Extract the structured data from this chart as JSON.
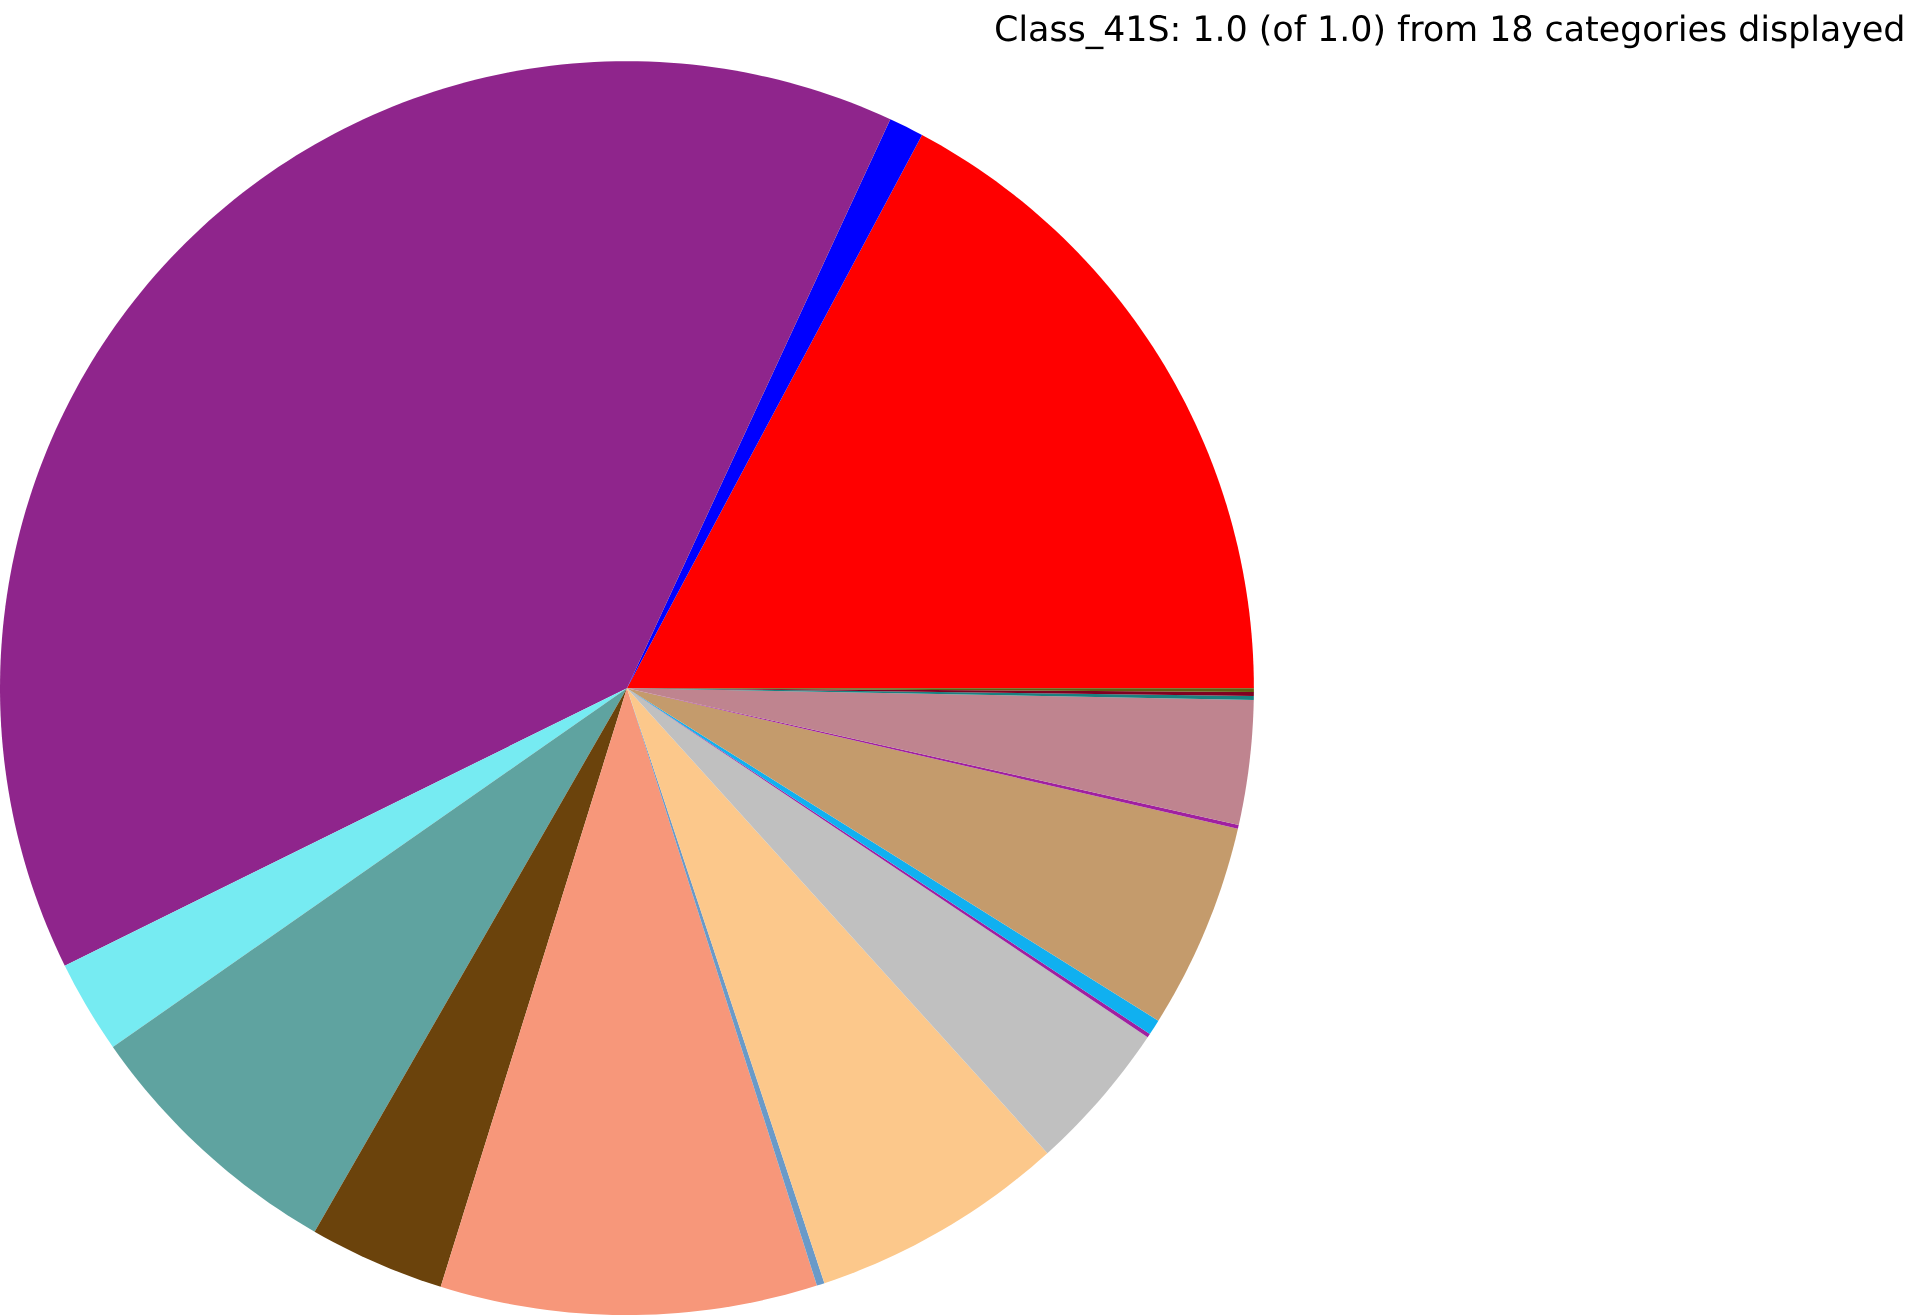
{
  "chart_data": {
    "type": "pie",
    "title": "Class_41S: 1.0 (of 1.0) from 18 categories displayed",
    "categories": [
      null,
      null,
      null,
      null,
      null,
      null,
      null,
      null,
      null,
      null,
      null,
      null,
      null,
      null,
      null,
      null,
      null,
      null
    ],
    "values": [
      17.2,
      0.9,
      39.2,
      2.4,
      7.0,
      3.5,
      9.7,
      0.2,
      6.6,
      3.9,
      0.1,
      0.4,
      5.3,
      0.1,
      3.2,
      0.1,
      0.1,
      0.1
    ],
    "colors": [
      "#ff0000",
      "#0000ff",
      "#8f258c",
      "#76ebf2",
      "#5fa3a0",
      "#6b430c",
      "#f7977a",
      "#6a9ac8",
      "#fcc88b",
      "#c0c0c0",
      "#a020a0",
      "#10b0f0",
      "#c49b6c",
      "#a020a0",
      "#bf848f",
      "#1a8080",
      "#800020",
      "#606010"
    ]
  }
}
